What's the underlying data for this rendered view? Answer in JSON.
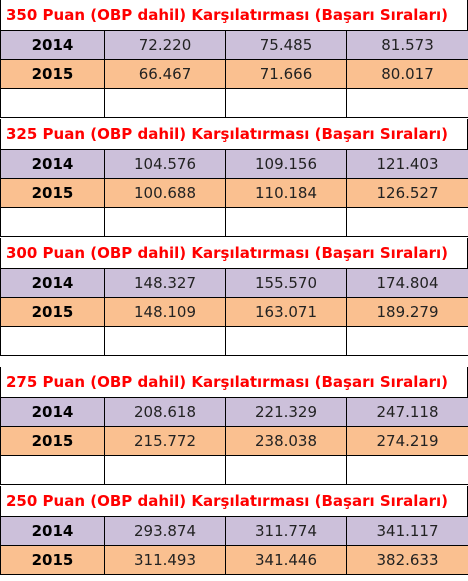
{
  "sections": [
    {
      "title": "350 Puan (OBP dahil) Karşılatırması  (Başarı Sıraları)",
      "rows": [
        {
          "year": "2014",
          "values": [
            "72.220",
            "75.485",
            "81.573"
          ]
        },
        {
          "year": "2015",
          "values": [
            "66.467",
            "71.666",
            "80.017"
          ]
        }
      ]
    },
    {
      "title": "325 Puan (OBP dahil) Karşılatırması  (Başarı Sıraları)",
      "rows": [
        {
          "year": "2014",
          "values": [
            "104.576",
            "109.156",
            "121.403"
          ]
        },
        {
          "year": "2015",
          "values": [
            "100.688",
            "110.184",
            "126.527"
          ]
        }
      ]
    },
    {
      "title": "300 Puan (OBP dahil) Karşılatırması  (Başarı Sıraları)",
      "rows": [
        {
          "year": "2014",
          "values": [
            "148.327",
            "155.570",
            "174.804"
          ]
        },
        {
          "year": "2015",
          "values": [
            "148.109",
            "163.071",
            "189.279"
          ]
        }
      ]
    },
    {
      "title": "275 Puan (OBP dahil) Karşılatırması  (Başarı Sıraları)",
      "rows": [
        {
          "year": "2014",
          "values": [
            "208.618",
            "221.329",
            "247.118"
          ]
        },
        {
          "year": "2015",
          "values": [
            "215.772",
            "238.038",
            "274.219"
          ]
        }
      ]
    },
    {
      "title": "250 Puan (OBP dahil) Karşılatırması  (Başarı Sıraları)",
      "rows": [
        {
          "year": "2014",
          "values": [
            "293.874",
            "311.774",
            "341.117"
          ]
        },
        {
          "year": "2015",
          "values": [
            "311.493",
            "341.446",
            "382.633"
          ]
        }
      ]
    }
  ],
  "colors": {
    "title_text": "#ff0000",
    "row_2014": "#ccc0da",
    "row_2015": "#fac090"
  }
}
